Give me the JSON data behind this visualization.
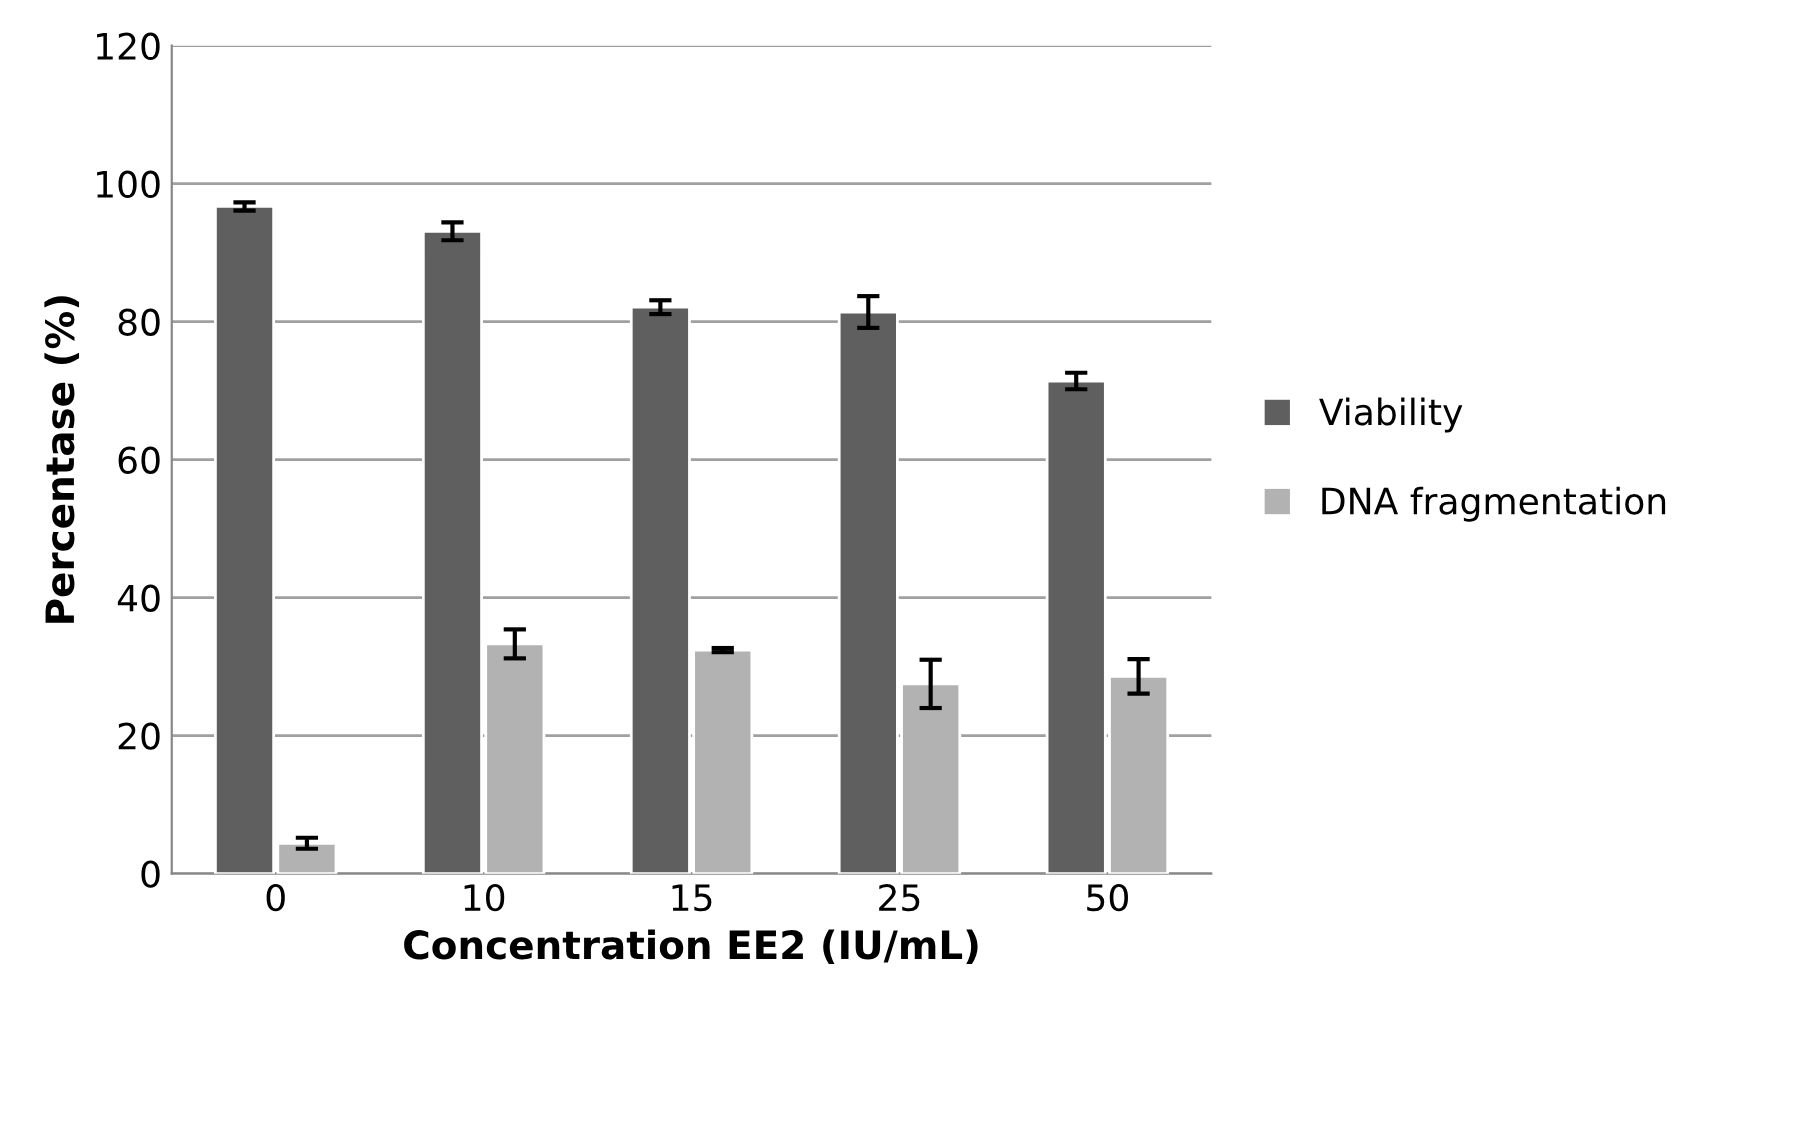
{
  "chart_data": {
    "type": "bar",
    "xlabel": "Concentration EE2 (IU/mL)",
    "ylabel": "Percentase (%)",
    "categories": [
      "0",
      "10",
      "15",
      "25",
      "50"
    ],
    "series": [
      {
        "name": "Viability",
        "color": "#5f5f5f",
        "values": [
          96.7,
          93.1,
          82.1,
          81.4,
          71.4
        ],
        "errors": [
          0.6,
          1.3,
          1.0,
          2.3,
          1.2
        ]
      },
      {
        "name": "DNA fragmentation",
        "color": "#b2b2b2",
        "values": [
          4.4,
          33.3,
          32.4,
          27.5,
          28.6
        ],
        "errors": [
          0.8,
          2.1,
          0.3,
          3.5,
          2.5
        ]
      }
    ],
    "ylim": [
      0,
      120
    ],
    "yticks": [
      0,
      20,
      40,
      60,
      80,
      100,
      120
    ],
    "grid": "y",
    "legend": "right"
  }
}
